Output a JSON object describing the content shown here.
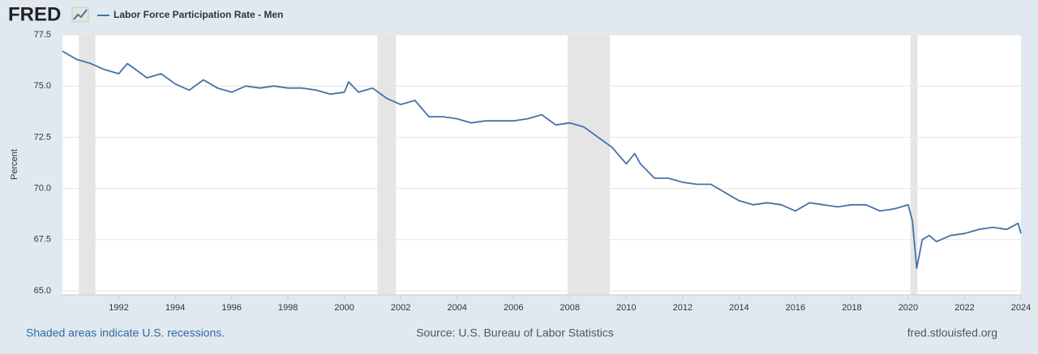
{
  "chart_data": {
    "type": "line",
    "logo": "FRED",
    "y_label": "Percent",
    "recession_note": "Shaded areas indicate U.S. recessions.",
    "source": "Source: U.S. Bureau of Labor Statistics",
    "site": "fred.stlouisfed.org",
    "recessions": [
      [
        1990.58,
        1991.17
      ],
      [
        2001.17,
        2001.83
      ],
      [
        2007.92,
        2009.42
      ],
      [
        2020.08,
        2020.33
      ]
    ],
    "recession_color": "#e5e5e5",
    "xlim": [
      1990,
      2024
    ],
    "xticks": [
      1992,
      1994,
      1996,
      1998,
      2000,
      2002,
      2004,
      2006,
      2008,
      2010,
      2012,
      2014,
      2016,
      2018,
      2020,
      2022,
      2024
    ],
    "ylim": [
      65,
      77.5
    ],
    "yticks": [
      {
        "value": 65,
        "label": "65.0"
      },
      67.5,
      {
        "value": 70,
        "label": "70.0"
      },
      72.5,
      {
        "value": 75,
        "label": "75.0"
      },
      77.5
    ],
    "grid": true,
    "x": [
      1990.0,
      1990.5,
      1991.0,
      1991.5,
      1992.0,
      1992.3,
      1992.5,
      1993.0,
      1993.5,
      1994.0,
      1994.5,
      1995.0,
      1995.5,
      1996.0,
      1996.5,
      1997.0,
      1997.5,
      1998.0,
      1998.5,
      1999.0,
      1999.5,
      2000.0,
      2000.15,
      2000.5,
      2001.0,
      2001.5,
      2002.0,
      2002.5,
      2003.0,
      2003.5,
      2004.0,
      2004.5,
      2005.0,
      2005.5,
      2006.0,
      2006.5,
      2007.0,
      2007.5,
      2008.0,
      2008.5,
      2009.0,
      2009.5,
      2010.0,
      2010.3,
      2010.5,
      2011.0,
      2011.5,
      2012.0,
      2012.5,
      2013.0,
      2013.5,
      2014.0,
      2014.5,
      2015.0,
      2015.5,
      2016.0,
      2016.5,
      2017.0,
      2017.5,
      2018.0,
      2018.5,
      2019.0,
      2019.5,
      2020.0,
      2020.15,
      2020.3,
      2020.5,
      2020.75,
      2021.0,
      2021.5,
      2022.0,
      2022.5,
      2023.0,
      2023.5,
      2023.9,
      2024.0
    ],
    "series": [
      {
        "name": "Labor Force Participation Rate - Men",
        "color": "#4572a7",
        "values": [
          76.7,
          76.3,
          76.1,
          75.8,
          75.6,
          76.1,
          75.9,
          75.4,
          75.6,
          75.1,
          74.8,
          75.3,
          74.9,
          74.7,
          75.0,
          74.9,
          75.0,
          74.9,
          74.9,
          74.8,
          74.6,
          74.7,
          75.2,
          74.7,
          74.9,
          74.4,
          74.1,
          74.3,
          73.5,
          73.5,
          73.4,
          73.2,
          73.3,
          73.3,
          73.3,
          73.4,
          73.6,
          73.1,
          73.2,
          73.0,
          72.5,
          72.0,
          71.2,
          71.7,
          71.2,
          70.5,
          70.5,
          70.3,
          70.2,
          70.2,
          69.8,
          69.4,
          69.2,
          69.3,
          69.2,
          68.9,
          69.3,
          69.2,
          69.1,
          69.2,
          69.2,
          68.9,
          69.0,
          69.2,
          68.4,
          66.1,
          67.5,
          67.7,
          67.4,
          67.7,
          67.8,
          68.0,
          68.1,
          68.0,
          68.3,
          67.8
        ]
      }
    ]
  }
}
